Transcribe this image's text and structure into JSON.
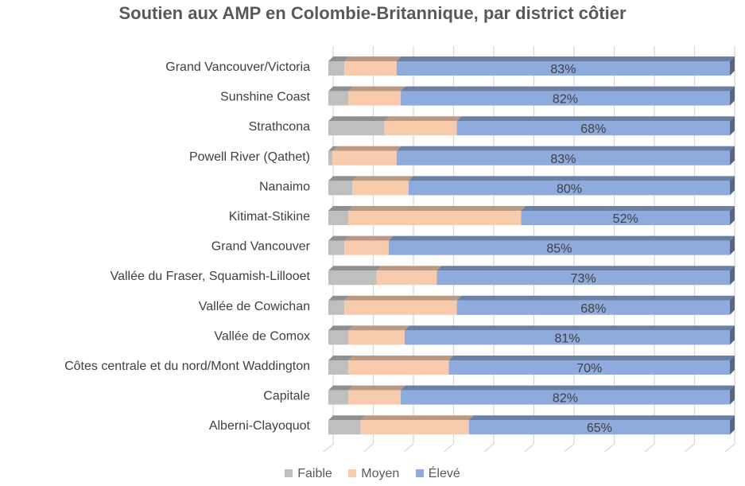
{
  "chart_data": {
    "type": "bar",
    "stacked": "100%",
    "orientation": "horizontal",
    "title": "Soutien aux AMP en Colombie-Britannique, par district côtier",
    "categories": [
      "Grand Vancouver/Victoria",
      "Sunshine Coast",
      "Strathcona",
      "Powell River (Qathet)",
      "Nanaimo",
      "Kitimat-Stikine",
      "Grand Vancouver",
      "Vallée du Fraser, Squamish-Lillooet",
      "Vallée de Cowichan",
      "Vallée de Comox",
      "Côtes centrale et du nord/Mont Waddington",
      "Capitale",
      "Alberni-Clayoquot"
    ],
    "series": [
      {
        "name": "Faible",
        "color": "#bfbfbf",
        "values": [
          4,
          5,
          14,
          1,
          6,
          5,
          4,
          12,
          4,
          5,
          5,
          5,
          8
        ]
      },
      {
        "name": "Moyen",
        "color": "#f8cbad",
        "values": [
          13,
          13,
          18,
          16,
          14,
          43,
          11,
          15,
          28,
          14,
          25,
          13,
          27
        ]
      },
      {
        "name": "Élevé",
        "color": "#8faadc",
        "values": [
          83,
          82,
          68,
          83,
          80,
          52,
          85,
          73,
          68,
          81,
          70,
          82,
          65
        ]
      }
    ],
    "data_labels": [
      "83%",
      "82%",
      "68%",
      "83%",
      "80%",
      "52%",
      "85%",
      "73%",
      "68%",
      "81%",
      "70%",
      "82%",
      "65%"
    ],
    "xlim": [
      0,
      100
    ],
    "grid": true,
    "legend": "bottom"
  }
}
